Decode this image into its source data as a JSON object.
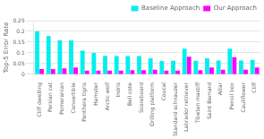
{
  "chart_data": {
    "type": "bar",
    "categories": [
      "Cliff dwelling",
      "Persian cat",
      "Pomeranian",
      "Convertible",
      "Panthera tigris",
      "Hamster",
      "Arctic wolf",
      "Indris",
      "Bell cote",
      "Scoreboard",
      "Drilling platform",
      "Coucal",
      "Standard schnauzer",
      "Labrador retriever",
      "Tibetan mastiff",
      "Saint Bernard",
      "Altar",
      "Pencil box",
      "Cauliflower",
      "Cliff"
    ],
    "series": [
      {
        "name": "Baseline Approach",
        "color": "#00EFEF",
        "values": [
          0.2,
          0.178,
          0.158,
          0.158,
          0.11,
          0.1,
          0.086,
          0.085,
          0.085,
          0.085,
          0.075,
          0.062,
          0.063,
          0.12,
          0.063,
          0.075,
          0.065,
          0.12,
          0.065,
          0.068
        ]
      },
      {
        "name": "Our Approach",
        "color": "#FF00FF",
        "values": [
          0.025,
          0.025,
          0.028,
          0.032,
          0.018,
          0.018,
          0.018,
          0.018,
          0.02,
          0.02,
          0.022,
          0.018,
          0.018,
          0.082,
          0.02,
          0.032,
          0.022,
          0.08,
          0.022,
          0.032
        ]
      }
    ],
    "ylabel": "Top-5 Error Rate",
    "ylim": [
      0,
      0.25
    ],
    "yticks": [
      0,
      0.05,
      0.1,
      0.15,
      0.2,
      0.25
    ],
    "grid": true,
    "legend": "upper right"
  }
}
